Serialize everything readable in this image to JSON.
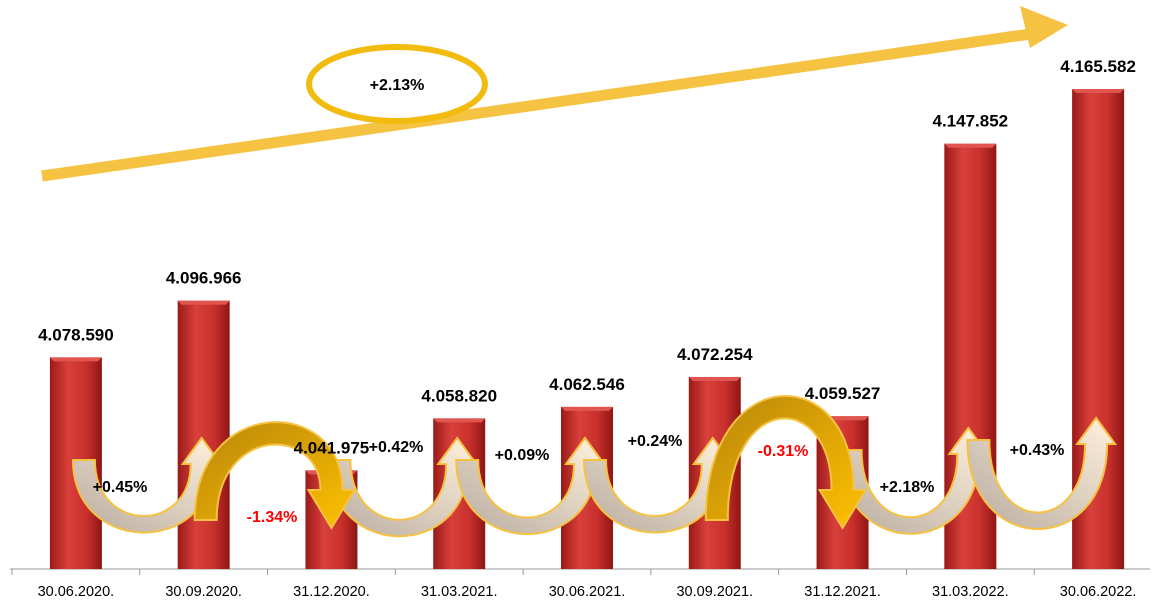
{
  "chart_data": {
    "type": "bar",
    "categories": [
      "30.06.2020.",
      "30.09.2020.",
      "31.12.2020.",
      "31.03.2021.",
      "30.06.2021.",
      "30.09.2021.",
      "31.12.2021.",
      "31.03.2022.",
      "30.06.2022."
    ],
    "values": [
      4078590,
      4096966,
      4041975,
      4058820,
      4062546,
      4072254,
      4059527,
      4147852,
      4165582
    ],
    "value_labels": [
      "4.078.590",
      "4.096.966",
      "4.041.975",
      "4.058.820",
      "4.062.546",
      "4.072.254",
      "4.059.527",
      "4.147.852",
      "4.165.582"
    ],
    "changes": [
      "+0.45%",
      "-1.34%",
      "+0.42%",
      "+0.09%",
      "+0.24%",
      "-0.31%",
      "+2.18%",
      "+0.43%"
    ],
    "total_change": "+2.13%",
    "ylim": [
      4010000,
      4175000
    ],
    "colors": {
      "bar": "#c8302c",
      "bar_top": "#e05550",
      "arrow": "#f5c242",
      "negative": "#ff0000",
      "positive": "#000000"
    }
  }
}
